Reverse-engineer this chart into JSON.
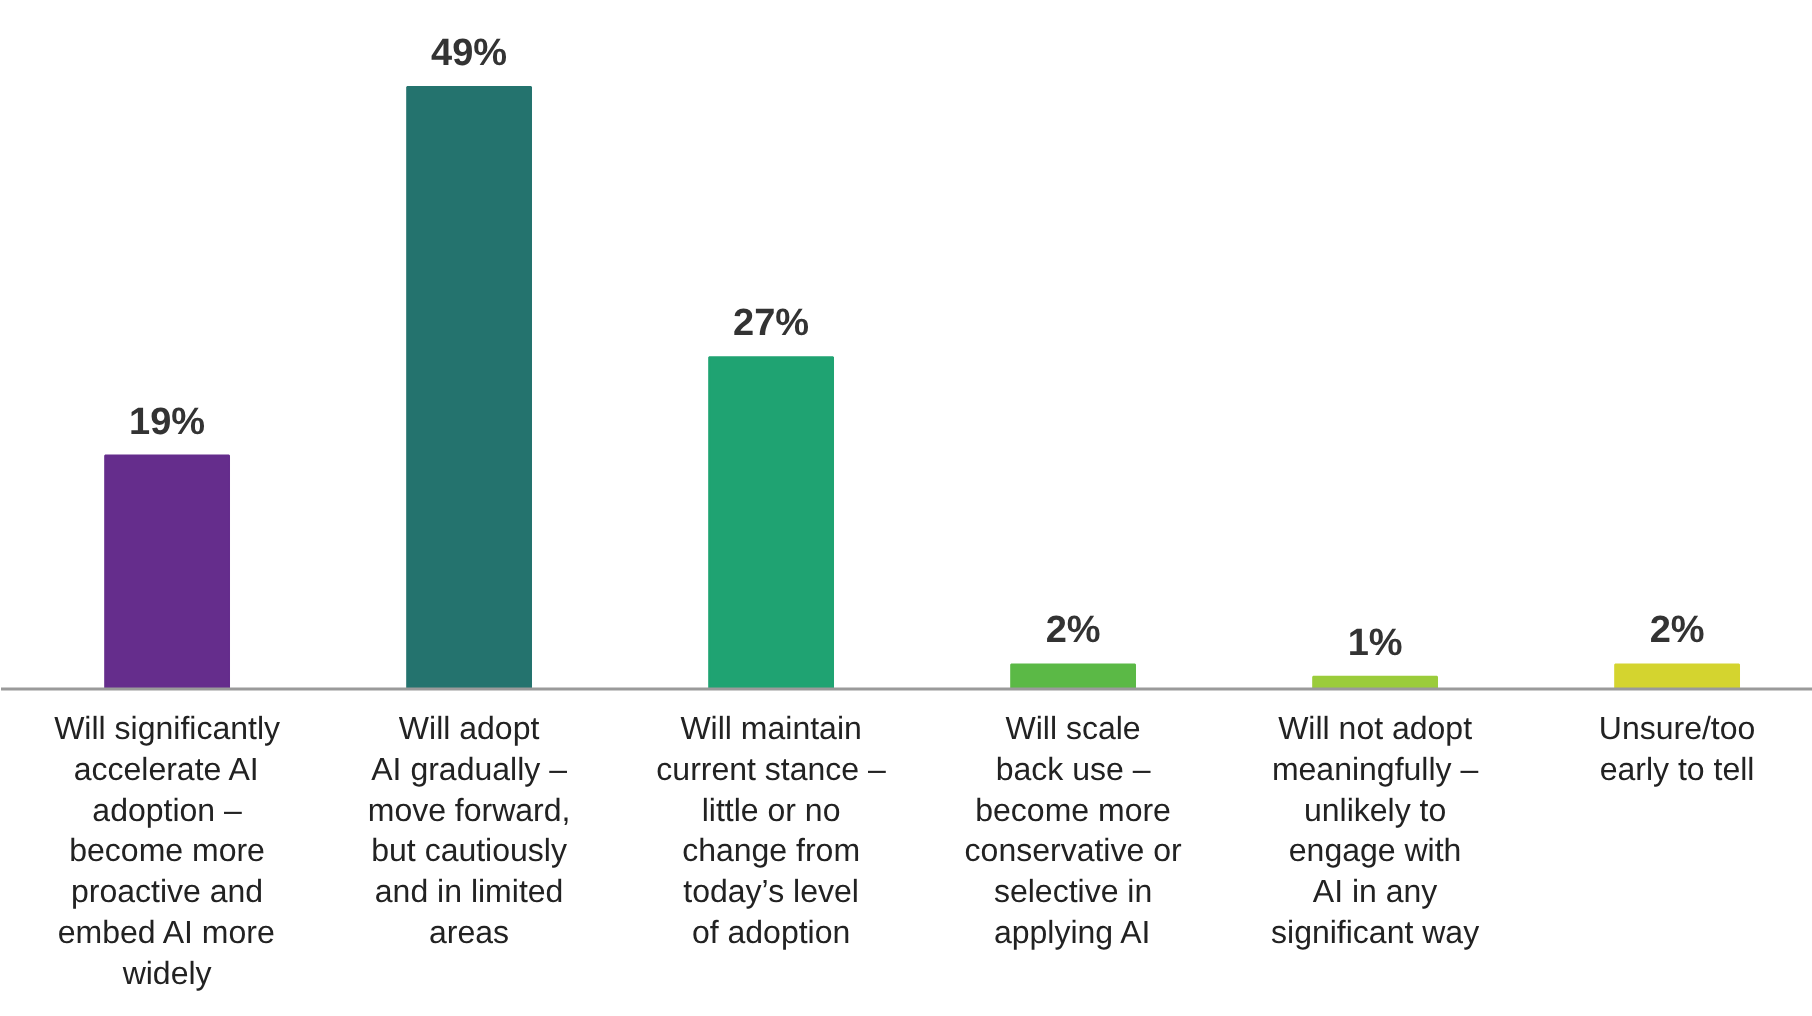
{
  "chart_data": {
    "type": "bar",
    "categories": [
      "Will significantly\naccelerate AI\nadoption –\nbecome more\nproactive and\nembed AI more\nwidely",
      "Will adopt\nAI gradually –\nmove forward,\nbut cautiously\nand in limited\nareas",
      "Will maintain\ncurrent stance –\nlittle or no\nchange from\ntoday’s level\nof adoption",
      "Will scale\nback use –\nbecome more\nconservative or\nselective in\napplying AI",
      "Will not adopt\nmeaningfully –\nunlikely to\nengage with\nAI in any\nsignificant way",
      "Unsure/too\nearly to tell"
    ],
    "values": [
      19,
      49,
      27,
      2,
      1,
      2
    ],
    "value_labels": [
      "19%",
      "49%",
      "27%",
      "2%",
      "1%",
      "2%"
    ],
    "colors": [
      "#652d8c",
      "#24736e",
      "#1fa372",
      "#5bb946",
      "#9bcc3b",
      "#d4d42f"
    ],
    "grid": false
  }
}
